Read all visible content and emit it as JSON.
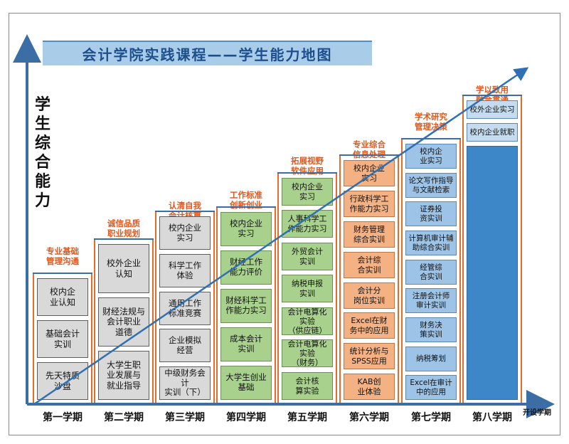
{
  "title": "会计学院实践课程——学生能力地图",
  "y_axis_label": "学生综合能力",
  "x_axis_label": "开设学期",
  "colors": {
    "axis": "#3a6ea5",
    "rail": "#e36c2b",
    "header_text": "#e2571a",
    "title_band": "#a9cde9",
    "grey": "#d9d9d9",
    "green": "#a9d18e",
    "orange": "#f4b183",
    "blue": "#9dc3e6",
    "blue_dark": "#3d86c8"
  },
  "semesters": [
    {
      "label": "第一学期",
      "header": "专业基础\n管理沟通",
      "style": "grey",
      "courses": [
        "校内企\n业认知",
        "基础会计\n实训",
        "先天特质\n沙盘"
      ]
    },
    {
      "label": "第二学期",
      "header": "诚信品质\n职业规划",
      "style": "grey",
      "courses": [
        "校外企业\n认知",
        "财经法规与\n会计职业\n道德",
        "大学生职\n业发展与\n就业指导"
      ]
    },
    {
      "label": "第三学期",
      "header": "认清自我\n会计核算",
      "style": "grey",
      "courses": [
        "校内企业\n实习",
        "科学工作\n体验",
        "通用工作\n标准竞赛",
        "企业模拟\n经营",
        "中级财务会计\n实训（下）"
      ]
    },
    {
      "label": "第四学期",
      "header": "工作标准\n创新创业",
      "style": "green",
      "courses": [
        "校内企业\n实习",
        "财经工作\n能力评价",
        "财经科学工\n作能力实习",
        "成本会计\n实训",
        "大学生创业\n基础"
      ]
    },
    {
      "label": "第五学期",
      "header": "拓展视野\n软件应用",
      "style": "green",
      "courses": [
        "校内企业\n实习",
        "人事科学工\n作能力实习",
        "外贸会计\n实训",
        "纳税申报\n实训",
        "会计电算化\n实验\n（供应链）",
        "会计电算化\n实验\n（财务）",
        "会计核\n算实验"
      ]
    },
    {
      "label": "第六学期",
      "header": "专业综合\n信息处理",
      "style": "orange",
      "courses": [
        "校内企业\n实习",
        "行政科学工\n作能力实习",
        "财务管理\n综合实训",
        "会计综\n合实训",
        "会计分\n岗位实训",
        "Excel在财\n务中的应用",
        "统计分析与\nSPSS应用",
        "KAB创\n业体验"
      ]
    },
    {
      "label": "第七学期",
      "header": "学术研究\n管理决策",
      "style": "blue",
      "courses": [
        "校内企\n业实习",
        "论文写作指导\n与文献检索",
        "证券投\n资实训",
        "计算机审计辅\n助综合实训",
        "经管综\n合实训",
        "注册会计师\n审计实训",
        "财务决\n策实训",
        "纳税筹划",
        "Excel在审计\n中的应用"
      ]
    },
    {
      "label": "第八学期",
      "header": "学以致用\n融合贯通",
      "style": "blue",
      "courses": [
        "校外企业实习",
        "校内企业就职"
      ]
    }
  ]
}
